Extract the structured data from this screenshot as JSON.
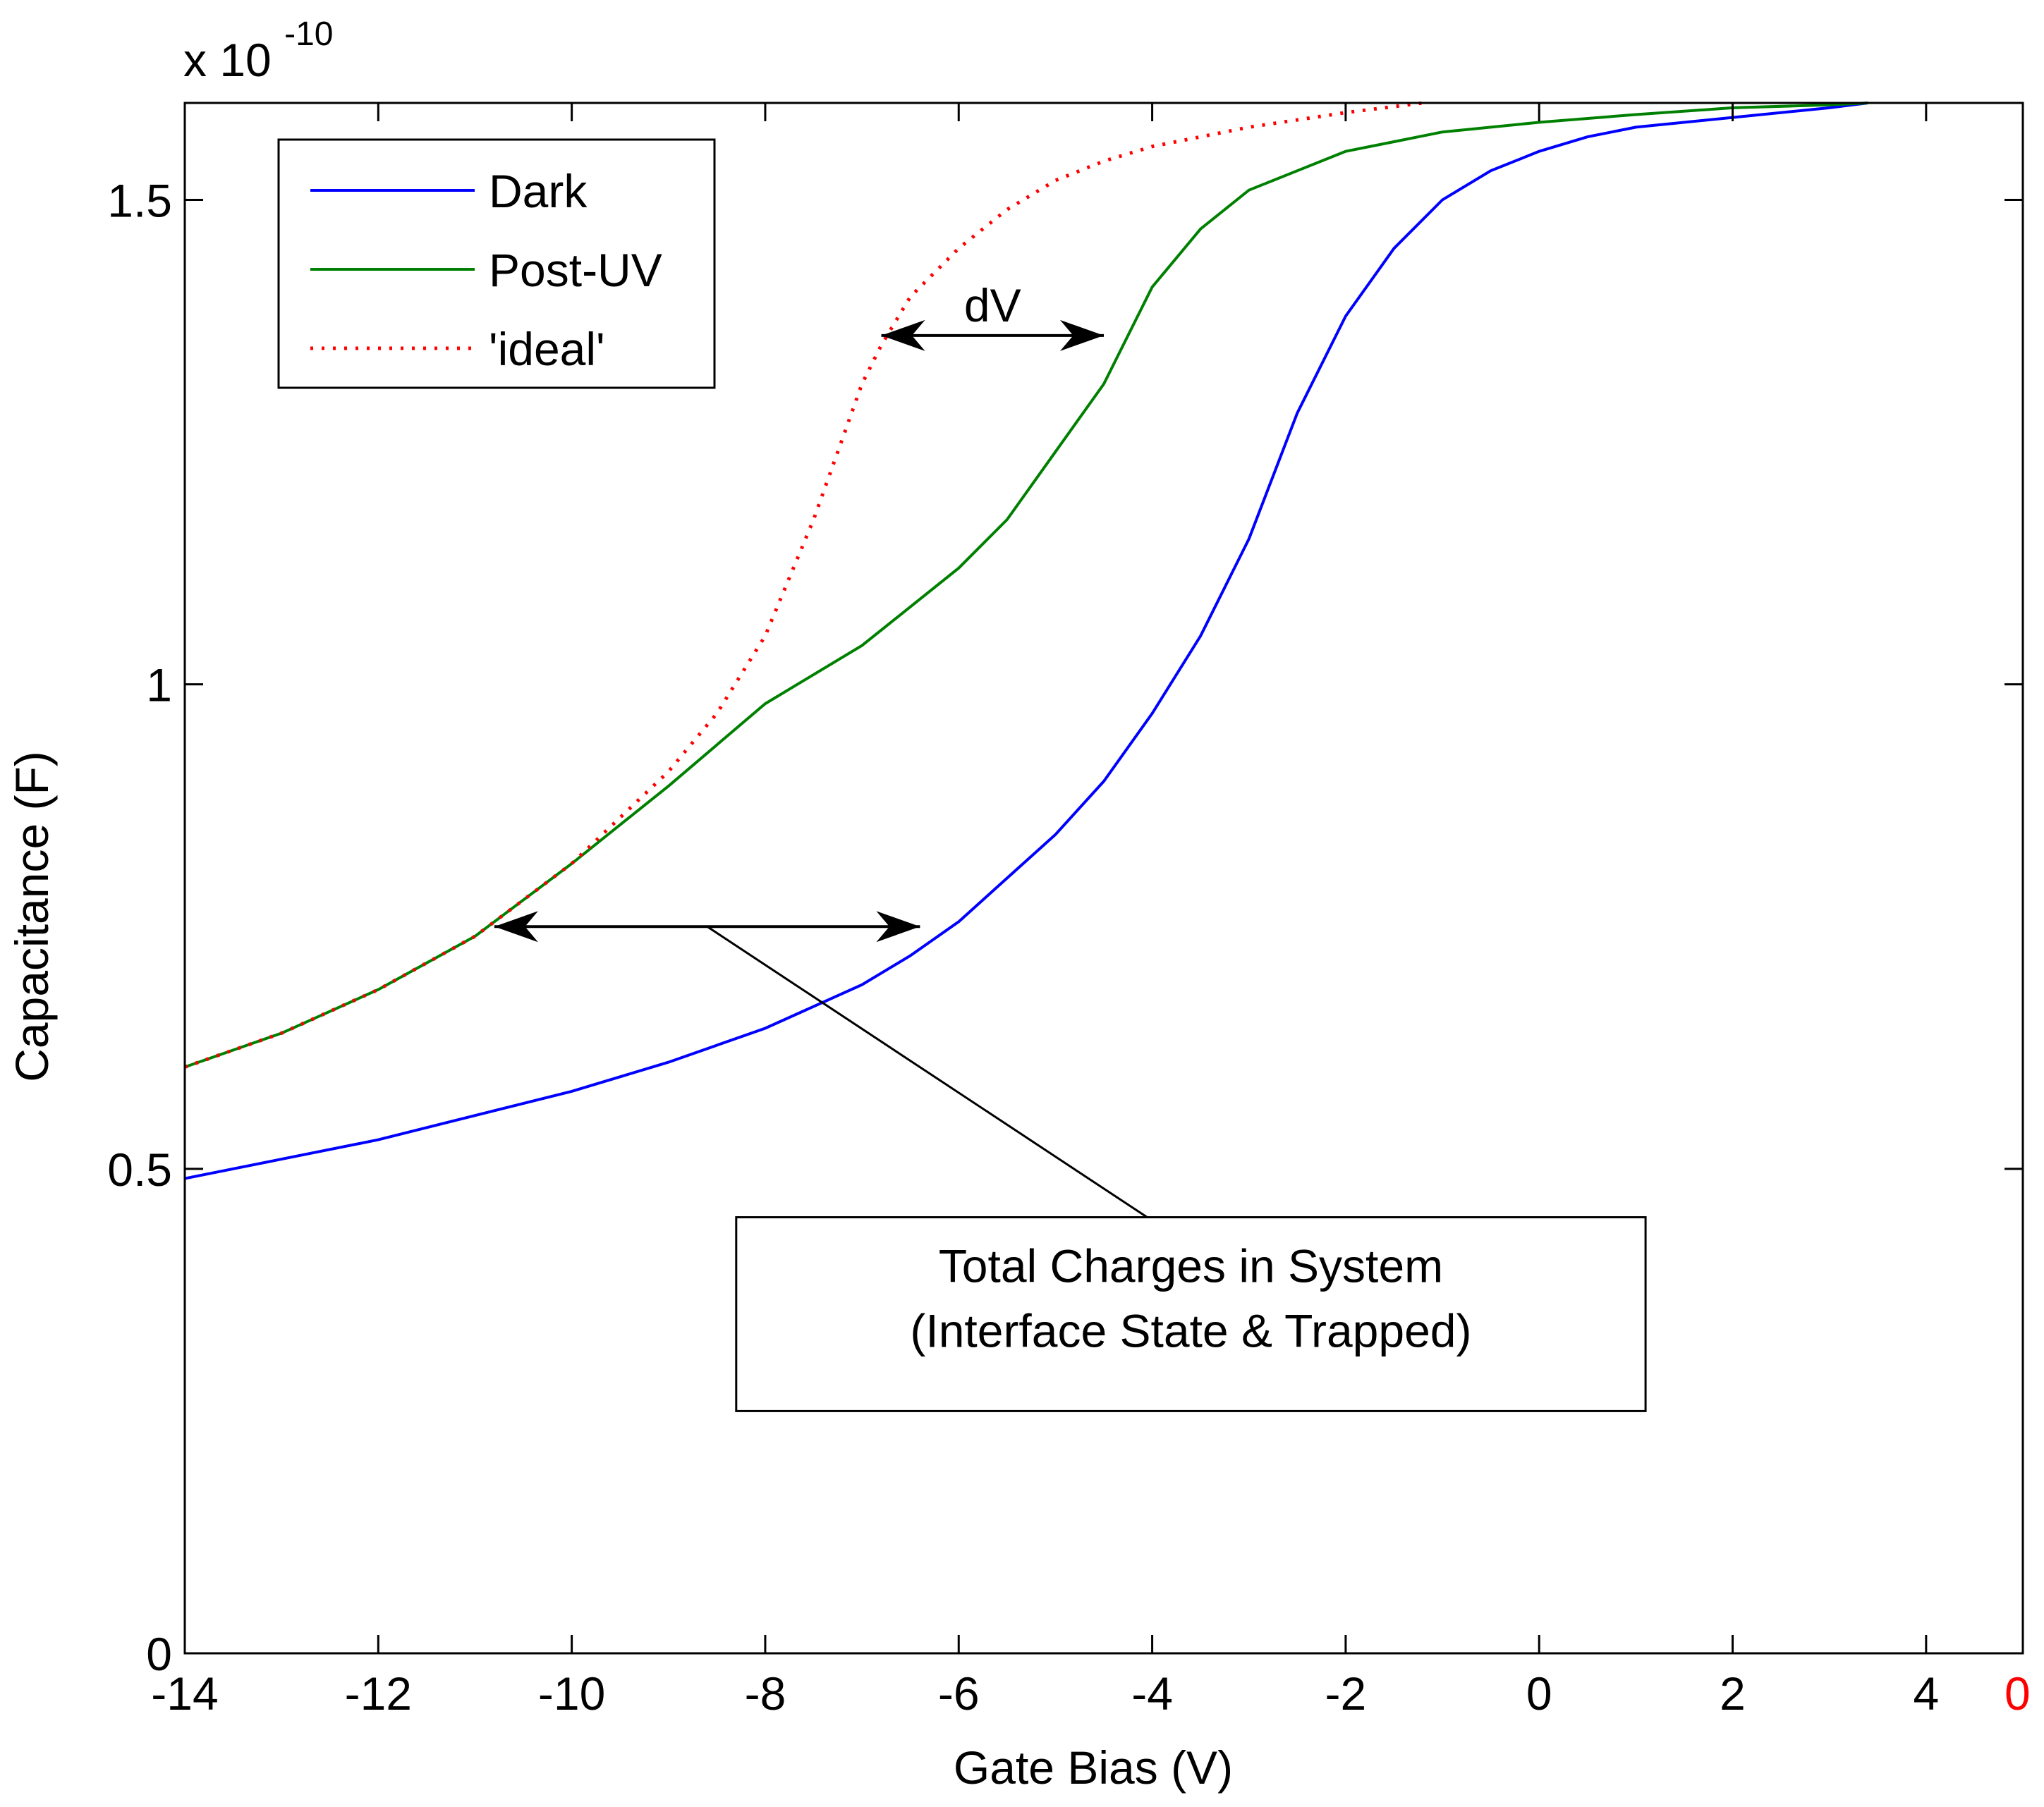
{
  "chart_data": {
    "type": "line",
    "title": "",
    "xlabel": "Gate Bias (V)",
    "ylabel": "Capacitance (F)",
    "exponent_label": "x 10",
    "exponent_power": "-10",
    "xlim": [
      -14,
      5
    ],
    "ylim": [
      0,
      1.6
    ],
    "xticks": [
      -14,
      -12,
      -10,
      -8,
      -6,
      -4,
      -2,
      0,
      2,
      4
    ],
    "yticks": [
      0,
      0.5,
      1,
      1.5
    ],
    "xtick_labels": [
      "-14",
      "-12",
      "-10",
      "-8",
      "-6",
      "-4",
      "-2",
      "0",
      "2",
      "4"
    ],
    "ytick_labels": [
      "0",
      "0.5",
      "1",
      "1.5"
    ],
    "right_axis_tick_label": "0",
    "right_axis_tick_label_color": "#ff0000",
    "grid": false,
    "legend_position": "top-left",
    "series": [
      {
        "name": "Dark",
        "color": "#0000ff",
        "style": "solid",
        "x": [
          -14,
          -13,
          -12,
          -11,
          -10,
          -9,
          -8,
          -7,
          -6.5,
          -6,
          -5.5,
          -5,
          -4.5,
          -4,
          -3.5,
          -3,
          -2.5,
          -2,
          -1.5,
          -1,
          -0.5,
          0,
          0.5,
          1,
          2,
          3,
          3.4
        ],
        "y": [
          0.49,
          0.51,
          0.53,
          0.555,
          0.58,
          0.61,
          0.645,
          0.69,
          0.72,
          0.755,
          0.8,
          0.845,
          0.9,
          0.97,
          1.05,
          1.15,
          1.28,
          1.38,
          1.45,
          1.5,
          1.53,
          1.55,
          1.565,
          1.575,
          1.585,
          1.595,
          1.6
        ]
      },
      {
        "name": "Post-UV",
        "color": "#008000",
        "style": "solid",
        "x": [
          -14,
          -13,
          -12,
          -11,
          -10,
          -9,
          -8,
          -7,
          -6.5,
          -6,
          -5.5,
          -5,
          -4.5,
          -4,
          -3.5,
          -3,
          -2.5,
          -2,
          -1.5,
          -1,
          0,
          1,
          2,
          3,
          3.4
        ],
        "y": [
          0.605,
          0.64,
          0.685,
          0.74,
          0.815,
          0.895,
          0.98,
          1.04,
          1.08,
          1.12,
          1.17,
          1.24,
          1.31,
          1.41,
          1.47,
          1.51,
          1.53,
          1.55,
          1.56,
          1.57,
          1.58,
          1.588,
          1.595,
          1.598,
          1.6
        ]
      },
      {
        "name": "'ideal'",
        "color": "#ff0000",
        "style": "dotted",
        "x": [
          -14,
          -13,
          -12,
          -11,
          -10,
          -9,
          -8.5,
          -8,
          -7.5,
          -7,
          -6.8,
          -6.5,
          -6,
          -5.5,
          -5,
          -4.5,
          -4,
          -3,
          -2,
          -1.2
        ],
        "y": [
          0.605,
          0.64,
          0.685,
          0.74,
          0.815,
          0.91,
          0.97,
          1.05,
          1.17,
          1.31,
          1.35,
          1.4,
          1.45,
          1.49,
          1.52,
          1.54,
          1.555,
          1.575,
          1.59,
          1.6
        ]
      }
    ],
    "annotations": {
      "dv_label": "dV",
      "dv_color": "#ff0000",
      "dv_arrow": {
        "x1": -6.8,
        "x2": -4.5,
        "y": 1.36
      },
      "total_arrow": {
        "x1": -10.8,
        "x2": -6.4,
        "y": 0.75
      },
      "callout_pointer": {
        "x1": -8.6,
        "y1": 0.75,
        "x2": -3.9,
        "y2": 0.44
      },
      "callout_lines": [
        "Total Charges in System",
        "(Interface State & Trapped)"
      ],
      "callout_box": {
        "x1": -8.3,
        "x2": 1.1,
        "y1": 0.45,
        "y2": 0.25
      }
    }
  }
}
